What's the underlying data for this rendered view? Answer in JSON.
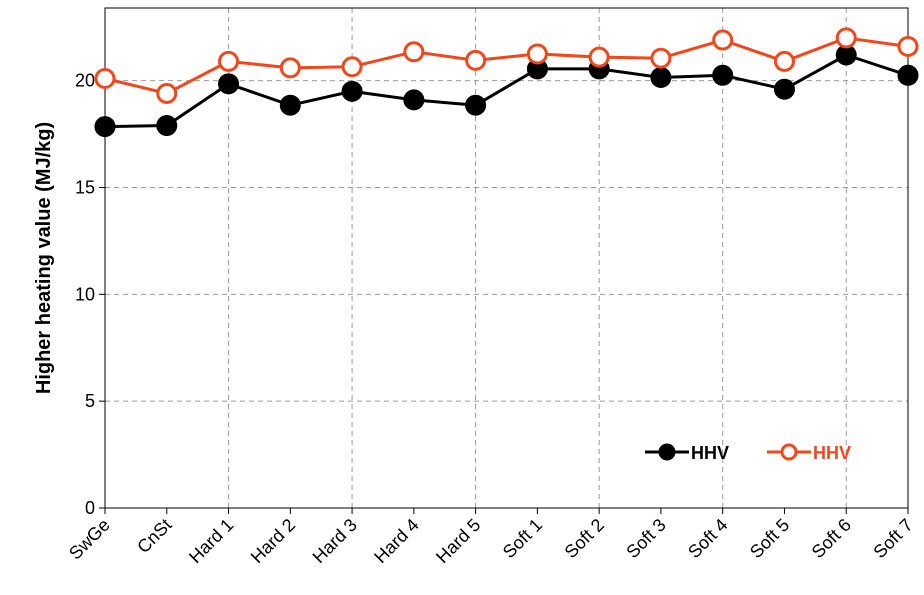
{
  "chart_data": {
    "type": "line",
    "y_label": "Higher heating value (MJ/kg)",
    "categories": [
      "SwGe",
      "CnSt",
      "Hard 1",
      "Hard 2",
      "Hard 3",
      "Hard 4",
      "Hard 5",
      "Soft 1",
      "Soft 2",
      "Soft 3",
      "Soft 4",
      "Soft 5",
      "Soft 6",
      "Soft 7"
    ],
    "series": [
      {
        "name": "HHV",
        "color": "#000000",
        "marker": "filled",
        "values": [
          17.85,
          17.9,
          19.85,
          18.85,
          19.5,
          19.1,
          18.85,
          20.55,
          20.55,
          20.15,
          20.25,
          19.6,
          21.2,
          20.25
        ]
      },
      {
        "name": "HHV",
        "color": "#f2471a",
        "marker": "open",
        "values": [
          20.1,
          19.4,
          20.9,
          20.6,
          20.65,
          21.35,
          20.95,
          21.25,
          21.1,
          21.05,
          21.9,
          20.9,
          22.0,
          21.6
        ]
      }
    ],
    "ylim": [
      0,
      23.4
    ],
    "yticks": [
      0,
      5,
      10,
      15,
      20
    ],
    "grid": true,
    "legend": "lower right"
  }
}
